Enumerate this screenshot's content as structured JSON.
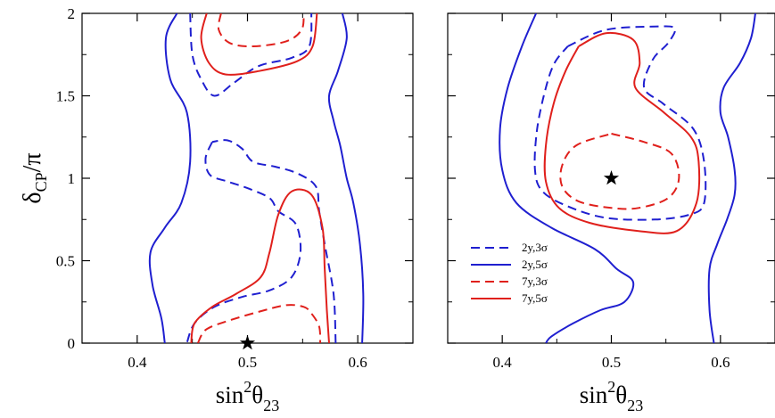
{
  "chart_data": [
    {
      "type": "contour",
      "panel": "left",
      "xlabel": {
        "base": "sin",
        "sup": "2",
        "greek": "θ",
        "sub": "23"
      },
      "ylabel": {
        "greek": "δ",
        "sub": "CP",
        "rest": "/π"
      },
      "xlim": [
        0.35,
        0.65
      ],
      "ylim": [
        0,
        2
      ],
      "xticks": [
        0.4,
        0.5,
        0.6
      ],
      "yticks": [
        0,
        0.5,
        1,
        1.5,
        2
      ],
      "xtick_labels": [
        "0.4",
        "0.5",
        "0.6"
      ],
      "ytick_labels": [
        "0",
        "0.5",
        "1",
        "1.5",
        "2"
      ],
      "true_point": {
        "x": 0.5,
        "y": 0
      },
      "series": [
        {
          "key": "2y3s",
          "color": "#1f1fd0",
          "dash": true,
          "paths": [
            [
              [
                0.448,
                2.0
              ],
              [
                0.45,
                1.75
              ],
              [
                0.458,
                1.6
              ],
              [
                0.47,
                1.5
              ],
              [
                0.488,
                1.58
              ],
              [
                0.51,
                1.68
              ],
              [
                0.54,
                1.73
              ],
              [
                0.556,
                1.8
              ],
              [
                0.558,
                2.0
              ]
            ],
            [
              [
                0.468,
                1.22
              ],
              [
                0.462,
                1.12
              ],
              [
                0.466,
                1.02
              ],
              [
                0.482,
                0.98
              ],
              [
                0.5,
                0.94
              ],
              [
                0.52,
                0.88
              ],
              [
                0.528,
                0.8
              ],
              [
                0.544,
                0.72
              ],
              [
                0.548,
                0.55
              ],
              [
                0.54,
                0.4
              ],
              [
                0.52,
                0.32
              ],
              [
                0.495,
                0.28
              ],
              [
                0.47,
                0.22
              ],
              [
                0.452,
                0.12
              ],
              [
                0.445,
                0.0
              ]
            ],
            [
              [
                0.58,
                0.0
              ],
              [
                0.578,
                0.3
              ],
              [
                0.57,
                0.6
              ],
              [
                0.565,
                0.8
              ],
              [
                0.562,
                0.95
              ],
              [
                0.545,
                1.03
              ],
              [
                0.525,
                1.07
              ],
              [
                0.505,
                1.1
              ],
              [
                0.495,
                1.18
              ],
              [
                0.482,
                1.23
              ],
              [
                0.468,
                1.22
              ]
            ]
          ]
        },
        {
          "key": "2y5s",
          "color": "#1f1fd0",
          "dash": false,
          "paths": [
            [
              [
                0.436,
                2.0
              ],
              [
                0.426,
                1.85
              ],
              [
                0.43,
                1.6
              ],
              [
                0.445,
                1.4
              ],
              [
                0.448,
                1.1
              ],
              [
                0.44,
                0.85
              ],
              [
                0.425,
                0.7
              ],
              [
                0.412,
                0.55
              ],
              [
                0.414,
                0.35
              ],
              [
                0.422,
                0.15
              ],
              [
                0.425,
                0.0
              ]
            ],
            [
              [
                0.586,
                2.0
              ],
              [
                0.59,
                1.85
              ],
              [
                0.582,
                1.65
              ],
              [
                0.574,
                1.5
              ],
              [
                0.578,
                1.35
              ],
              [
                0.584,
                1.2
              ],
              [
                0.59,
                1.0
              ],
              [
                0.596,
                0.85
              ],
              [
                0.602,
                0.6
              ],
              [
                0.605,
                0.3
              ],
              [
                0.604,
                0.0
              ]
            ]
          ]
        },
        {
          "key": "7y3s",
          "color": "#e0201c",
          "dash": true,
          "paths": [
            [
              [
                0.476,
                2.0
              ],
              [
                0.474,
                1.9
              ],
              [
                0.484,
                1.82
              ],
              [
                0.505,
                1.8
              ],
              [
                0.535,
                1.83
              ],
              [
                0.549,
                1.9
              ],
              [
                0.551,
                2.0
              ]
            ],
            [
              [
                0.455,
                0.0
              ],
              [
                0.462,
                0.08
              ],
              [
                0.48,
                0.13
              ],
              [
                0.51,
                0.19
              ],
              [
                0.535,
                0.23
              ],
              [
                0.551,
                0.22
              ],
              [
                0.558,
                0.18
              ],
              [
                0.565,
                0.1
              ],
              [
                0.566,
                0.0
              ]
            ]
          ]
        },
        {
          "key": "7y5s",
          "color": "#e0201c",
          "dash": false,
          "paths": [
            [
              [
                0.463,
                2.0
              ],
              [
                0.458,
                1.85
              ],
              [
                0.465,
                1.7
              ],
              [
                0.48,
                1.63
              ],
              [
                0.51,
                1.65
              ],
              [
                0.545,
                1.71
              ],
              [
                0.559,
                1.8
              ],
              [
                0.563,
                2.0
              ]
            ],
            [
              [
                0.449,
                0.0
              ],
              [
                0.452,
                0.12
              ],
              [
                0.468,
                0.22
              ],
              [
                0.49,
                0.3
              ],
              [
                0.512,
                0.4
              ],
              [
                0.52,
                0.55
              ],
              [
                0.528,
                0.78
              ],
              [
                0.54,
                0.92
              ],
              [
                0.558,
                0.9
              ],
              [
                0.568,
                0.7
              ],
              [
                0.57,
                0.45
              ],
              [
                0.572,
                0.2
              ],
              [
                0.574,
                0.0
              ]
            ]
          ]
        }
      ]
    },
    {
      "type": "contour",
      "panel": "right",
      "xlabel": {
        "base": "sin",
        "sup": "2",
        "greek": "θ",
        "sub": "23"
      },
      "xlim": [
        0.35,
        0.65
      ],
      "ylim": [
        0,
        2
      ],
      "xticks": [
        0.4,
        0.5,
        0.6
      ],
      "yticks": [
        0,
        0.5,
        1,
        1.5,
        2
      ],
      "xtick_labels": [
        "0.4",
        "0.5",
        "0.6"
      ],
      "true_point": {
        "x": 0.5,
        "y": 1
      },
      "legend": {
        "position": "lower-left",
        "entries": [
          {
            "key": "2y3s",
            "label": "2y,3σ",
            "color": "#1f1fd0",
            "dash": true
          },
          {
            "key": "2y5s",
            "label": "2y,5σ",
            "color": "#1f1fd0",
            "dash": false
          },
          {
            "key": "7y3s",
            "label": "7y,3σ",
            "color": "#e0201c",
            "dash": true
          },
          {
            "key": "7y5s",
            "label": "7y,5σ",
            "color": "#e0201c",
            "dash": false
          }
        ]
      },
      "series": [
        {
          "key": "2y3s",
          "color": "#1f1fd0",
          "dash": true,
          "paths": [
            [
              [
                0.46,
                1.8
              ],
              [
                0.495,
                1.9
              ],
              [
                0.54,
                1.92
              ],
              [
                0.558,
                1.91
              ],
              [
                0.552,
                1.82
              ],
              [
                0.538,
                1.72
              ],
              [
                0.53,
                1.55
              ],
              [
                0.548,
                1.45
              ],
              [
                0.575,
                1.3
              ],
              [
                0.585,
                1.1
              ],
              [
                0.585,
                0.85
              ],
              [
                0.572,
                0.78
              ],
              [
                0.54,
                0.75
              ],
              [
                0.495,
                0.76
              ],
              [
                0.46,
                0.83
              ],
              [
                0.437,
                0.92
              ],
              [
                0.43,
                1.05
              ],
              [
                0.432,
                1.3
              ],
              [
                0.44,
                1.55
              ],
              [
                0.448,
                1.7
              ],
              [
                0.46,
                1.8
              ]
            ]
          ]
        },
        {
          "key": "2y5s",
          "color": "#1f1fd0",
          "dash": false,
          "paths": [
            [
              [
                0.431,
                2.0
              ],
              [
                0.418,
                1.8
              ],
              [
                0.405,
                1.55
              ],
              [
                0.398,
                1.3
              ],
              [
                0.4,
                1.05
              ],
              [
                0.413,
                0.85
              ],
              [
                0.445,
                0.7
              ],
              [
                0.485,
                0.57
              ],
              [
                0.505,
                0.45
              ],
              [
                0.52,
                0.37
              ],
              [
                0.512,
                0.25
              ],
              [
                0.49,
                0.2
              ],
              [
                0.465,
                0.12
              ],
              [
                0.445,
                0.04
              ],
              [
                0.44,
                0.0
              ]
            ],
            [
              [
                0.632,
                2.0
              ],
              [
                0.628,
                1.85
              ],
              [
                0.618,
                1.7
              ],
              [
                0.603,
                1.55
              ],
              [
                0.6,
                1.4
              ],
              [
                0.607,
                1.25
              ],
              [
                0.613,
                1.05
              ],
              [
                0.613,
                0.9
              ],
              [
                0.606,
                0.75
              ],
              [
                0.597,
                0.6
              ],
              [
                0.59,
                0.45
              ],
              [
                0.59,
                0.2
              ],
              [
                0.594,
                0.0
              ]
            ]
          ]
        },
        {
          "key": "7y3s",
          "color": "#e0201c",
          "dash": true,
          "paths": [
            [
              [
                0.5,
                1.27
              ],
              [
                0.53,
                1.22
              ],
              [
                0.555,
                1.15
              ],
              [
                0.562,
                1.0
              ],
              [
                0.552,
                0.88
              ],
              [
                0.525,
                0.82
              ],
              [
                0.5,
                0.82
              ],
              [
                0.47,
                0.86
              ],
              [
                0.455,
                0.95
              ],
              [
                0.455,
                1.08
              ],
              [
                0.468,
                1.2
              ],
              [
                0.5,
                1.27
              ]
            ]
          ]
        },
        {
          "key": "7y5s",
          "color": "#e0201c",
          "dash": false,
          "paths": [
            [
              [
                0.47,
                1.8
              ],
              [
                0.495,
                1.88
              ],
              [
                0.52,
                1.84
              ],
              [
                0.526,
                1.7
              ],
              [
                0.522,
                1.55
              ],
              [
                0.548,
                1.4
              ],
              [
                0.573,
                1.25
              ],
              [
                0.58,
                1.1
              ],
              [
                0.578,
                0.85
              ],
              [
                0.56,
                0.68
              ],
              [
                0.525,
                0.68
              ],
              [
                0.48,
                0.73
              ],
              [
                0.452,
                0.82
              ],
              [
                0.44,
                0.98
              ],
              [
                0.44,
                1.2
              ],
              [
                0.447,
                1.45
              ],
              [
                0.458,
                1.65
              ],
              [
                0.47,
                1.8
              ]
            ]
          ]
        }
      ]
    }
  ]
}
